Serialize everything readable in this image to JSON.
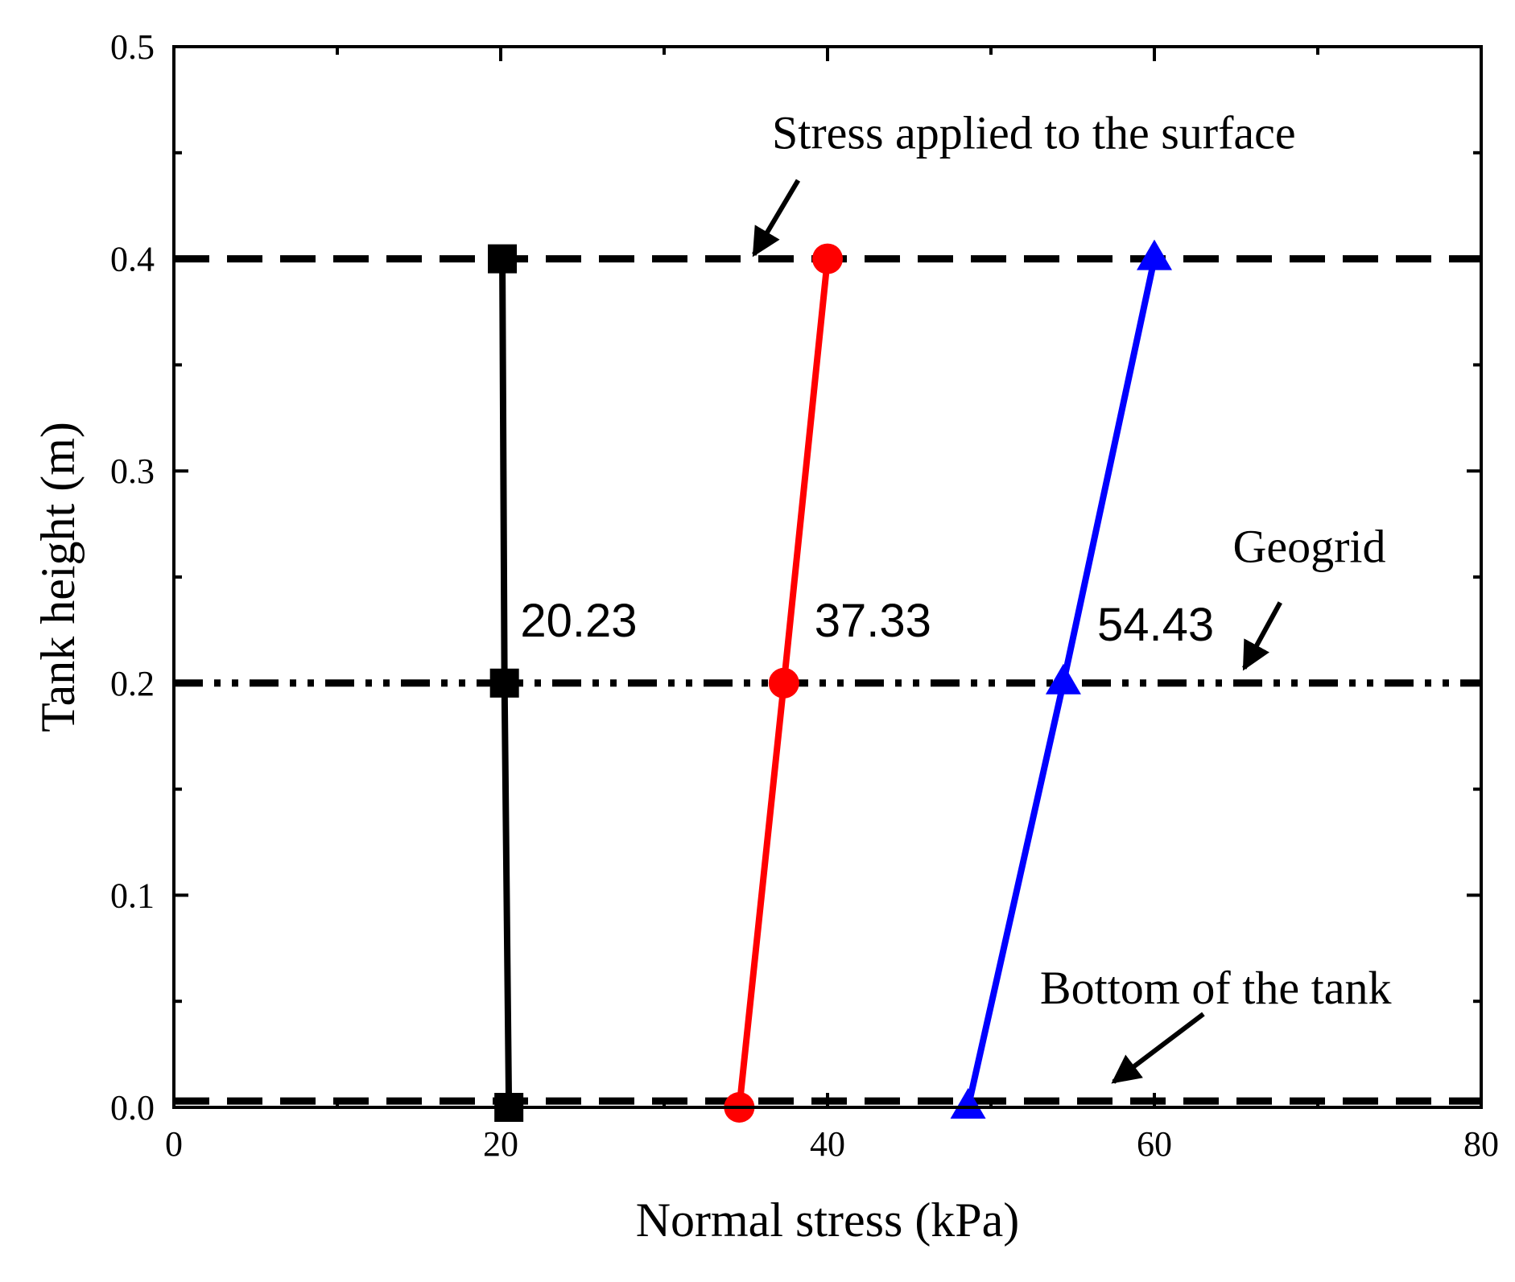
{
  "chart_data": {
    "type": "line",
    "title": "",
    "xlabel": "Normal stress (kPa)",
    "ylabel": "Tank height (m)",
    "xlim": [
      0,
      80
    ],
    "ylim": [
      0,
      0.5
    ],
    "xticks": [
      0,
      20,
      40,
      60,
      80
    ],
    "xtick_labels": [
      "0",
      "20",
      "40",
      "60",
      "80"
    ],
    "yticks": [
      0.0,
      0.1,
      0.2,
      0.3,
      0.4,
      0.5
    ],
    "ytick_labels": [
      "0.0",
      "0.1",
      "0.2",
      "0.3",
      "0.4",
      "0.5"
    ],
    "grid": false,
    "series": [
      {
        "name": "series-1",
        "marker": "square",
        "color": "#000000",
        "x": [
          20.5,
          20.23,
          20.1
        ],
        "y": [
          0.0,
          0.2,
          0.4
        ]
      },
      {
        "name": "series-2",
        "marker": "circle",
        "color": "#ff0000",
        "x": [
          34.6,
          37.33,
          40.0
        ],
        "y": [
          0.0,
          0.2,
          0.4
        ]
      },
      {
        "name": "series-3",
        "marker": "triangle",
        "color": "#0000ff",
        "x": [
          48.6,
          54.43,
          60.0
        ],
        "y": [
          0.0,
          0.2,
          0.4
        ]
      }
    ],
    "reference_lines": [
      {
        "name": "surface-line",
        "y": 0.4,
        "style": "dashed"
      },
      {
        "name": "geogrid-line",
        "y": 0.2,
        "style": "dash-dot-dot"
      },
      {
        "name": "bottom-line",
        "y": 0.003,
        "style": "dashed"
      }
    ],
    "data_labels": [
      {
        "text": "20.23",
        "x": 21.2,
        "y": 0.222
      },
      {
        "text": "37.33",
        "x": 39.2,
        "y": 0.222
      },
      {
        "text": "54.43",
        "x": 56.5,
        "y": 0.22
      }
    ],
    "annotations": [
      {
        "name": "annotation-surface",
        "text": "Stress applied to the surface",
        "x": 36.6,
        "y": 0.452,
        "arrow_from": [
          38.2,
          0.437
        ],
        "arrow_to": [
          35.5,
          0.402
        ]
      },
      {
        "name": "annotation-geogrid",
        "text": "Geogrid",
        "x": 64.8,
        "y": 0.257,
        "arrow_from": [
          67.7,
          0.238
        ],
        "arrow_to": [
          65.5,
          0.207
        ]
      },
      {
        "name": "annotation-bottom",
        "text": "Bottom of the tank",
        "x": 53.0,
        "y": 0.049,
        "arrow_from": [
          63.0,
          0.044
        ],
        "arrow_to": [
          57.5,
          0.012
        ]
      }
    ]
  }
}
